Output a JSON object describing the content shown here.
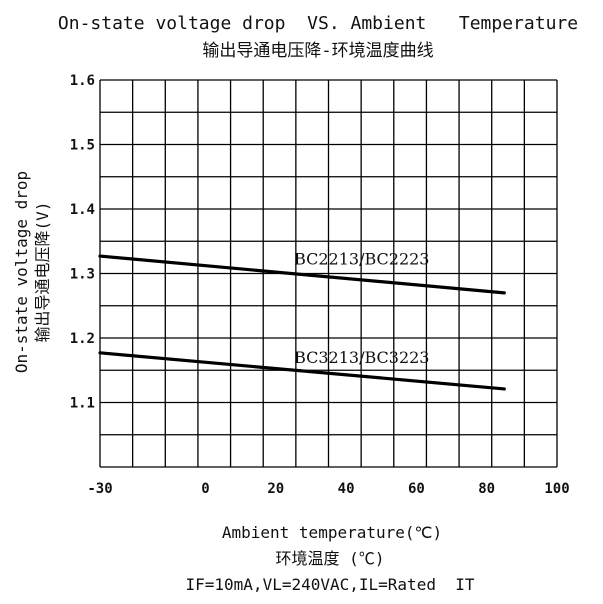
{
  "chart_data": {
    "type": "line",
    "title": "On-state voltage drop  VS. Ambient   Temperature",
    "subtitle": "输出导通电压降-环境温度曲线",
    "xlabel": "Ambient temperature(℃)",
    "xlabel_cn": "环境温度 (℃)",
    "ylabel": "On-state voltage drop",
    "ylabel_cn": "输出导通电压降(V)",
    "note": "IF=10mA,VL=240VAC,IL=Rated  IT",
    "xlim": [
      -30,
      100
    ],
    "ylim": [
      1.0,
      1.6
    ],
    "x_ticks": [
      "-30",
      "0",
      "20",
      "40",
      "60",
      "80",
      "100"
    ],
    "x_tick_values": [
      -30,
      0,
      20,
      40,
      60,
      80,
      100
    ],
    "y_ticks": [
      "1.6",
      "1.5",
      "1.4",
      "1.3",
      "1.2",
      "1.1"
    ],
    "y_tick_values": [
      1.6,
      1.5,
      1.4,
      1.3,
      1.2,
      1.1
    ],
    "grid": true,
    "series": [
      {
        "name": "BC2213/BC2223",
        "x": [
          -30,
          85
        ],
        "y": [
          1.327,
          1.27
        ]
      },
      {
        "name": "BC3213/BC3223",
        "x": [
          -30,
          85
        ],
        "y": [
          1.177,
          1.121
        ]
      }
    ]
  }
}
